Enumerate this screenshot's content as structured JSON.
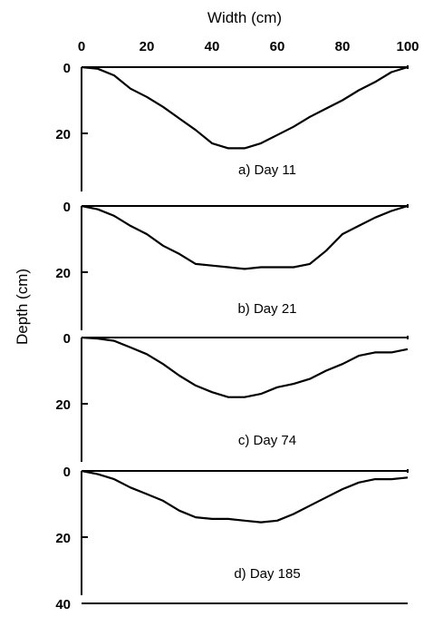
{
  "chart_data": {
    "type": "line",
    "xlabel": "Width (cm)",
    "ylabel": "Depth (cm)",
    "xlim": [
      0,
      100
    ],
    "x_ticks": [
      "0",
      "20",
      "40",
      "60",
      "80",
      "100"
    ],
    "grid": false,
    "panels": [
      {
        "label": "a)  Day 11",
        "ylim": [
          0,
          40
        ],
        "y_ticks": [
          "0",
          "20"
        ],
        "x": [
          0,
          5,
          10,
          15,
          20,
          25,
          30,
          35,
          40,
          45,
          50,
          55,
          60,
          65,
          70,
          75,
          80,
          85,
          90,
          95,
          100
        ],
        "depth": [
          0,
          0.5,
          2.5,
          6.5,
          9,
          12,
          15.5,
          19,
          23,
          24.5,
          24.5,
          23,
          20.5,
          18,
          15,
          12.5,
          10,
          7,
          4.5,
          1.5,
          0
        ]
      },
      {
        "label": "b)  Day 21",
        "ylim": [
          0,
          40
        ],
        "y_ticks": [
          "0",
          "20"
        ],
        "x": [
          0,
          5,
          10,
          15,
          20,
          25,
          30,
          35,
          40,
          45,
          50,
          55,
          60,
          65,
          70,
          75,
          80,
          85,
          90,
          95,
          100
        ],
        "depth": [
          0,
          1,
          3,
          6,
          8.5,
          12,
          14.5,
          17.5,
          18,
          18.5,
          19,
          18.5,
          18.5,
          18.5,
          17.5,
          13.5,
          8.5,
          6,
          3.5,
          1.5,
          0
        ]
      },
      {
        "label": "c)  Day 74",
        "ylim": [
          0,
          40
        ],
        "y_ticks": [
          "0",
          "20"
        ],
        "x": [
          0,
          5,
          10,
          15,
          20,
          25,
          30,
          35,
          40,
          45,
          50,
          55,
          60,
          65,
          70,
          75,
          80,
          85,
          90,
          95,
          100
        ],
        "depth": [
          0,
          0.3,
          1,
          3,
          5,
          8,
          11.5,
          14.5,
          16.5,
          18,
          18,
          17,
          15,
          14,
          12.5,
          10,
          8,
          5.5,
          4.5,
          4.5,
          3.5
        ]
      },
      {
        "label": "d)  Day 185",
        "ylim": [
          0,
          40
        ],
        "y_ticks": [
          "0",
          "20",
          "40"
        ],
        "x": [
          0,
          5,
          10,
          15,
          20,
          25,
          30,
          35,
          40,
          45,
          50,
          55,
          60,
          65,
          70,
          75,
          80,
          85,
          90,
          95,
          100
        ],
        "depth": [
          0,
          1,
          2.5,
          5,
          7,
          9,
          12,
          14,
          14.5,
          14.5,
          15,
          15.5,
          15,
          13,
          10.5,
          8,
          5.5,
          3.5,
          2.5,
          2.5,
          2
        ]
      }
    ]
  }
}
